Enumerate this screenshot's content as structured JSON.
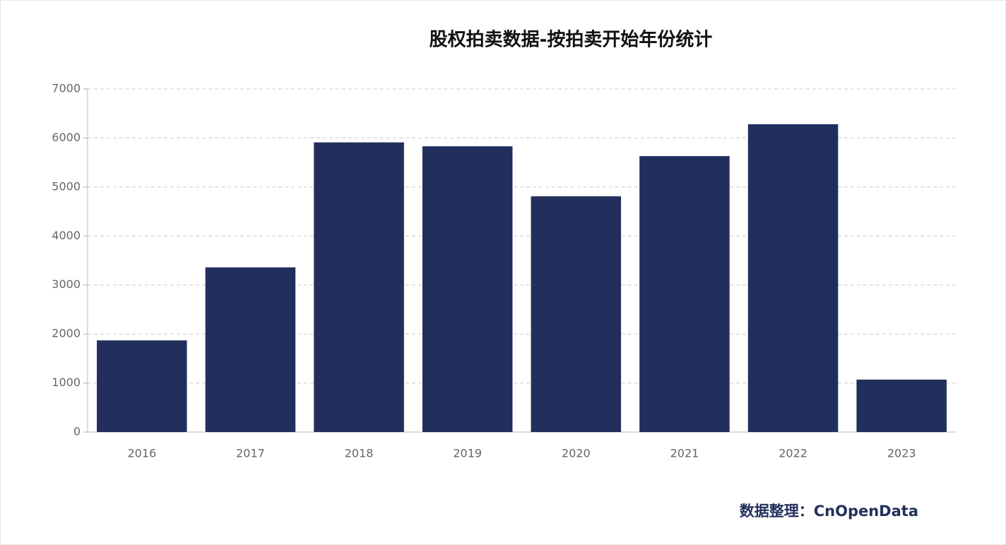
{
  "chart_data": {
    "type": "bar",
    "title": "股权拍卖数据-按拍卖开始年份统计",
    "categories": [
      "2016",
      "2017",
      "2018",
      "2019",
      "2020",
      "2021",
      "2022",
      "2023"
    ],
    "values": [
      1870,
      3360,
      5910,
      5830,
      4810,
      5630,
      6280,
      1070
    ],
    "color": "#222e5c",
    "ylim": [
      0,
      7000
    ],
    "yticks": [
      0,
      1000,
      2000,
      3000,
      4000,
      5000,
      6000,
      7000
    ],
    "grid": true,
    "source": "数据整理：CnOpenData"
  }
}
